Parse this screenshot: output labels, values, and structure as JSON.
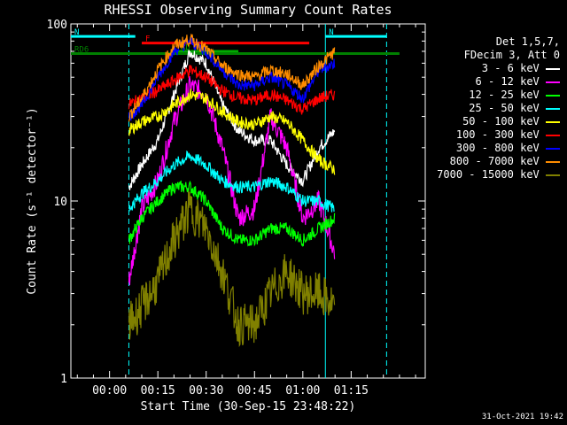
{
  "title": "RHESSI Observing Summary Count Rates",
  "xlabel": "Start Time (30-Sep-15 23:48:22)",
  "ylabel": "Count Rate (s⁻¹ detector⁻¹)",
  "timestamp": "31-Oct-2021 19:42",
  "legend_header": [
    "Det 1,5,7,",
    "FDecim 3, Att 0"
  ],
  "flag_labels": {
    "N": "N",
    "F": "F",
    "RD": "RD",
    "RD6": "RD6"
  },
  "chart_data": {
    "type": "line",
    "title": "RHESSI Observing Summary Count Rates",
    "xlabel": "Start Time (30-Sep-15 23:48:22)",
    "ylabel": "Count Rate (s^-1 detector^-1)",
    "y_scale": "log",
    "ylim": [
      1,
      100
    ],
    "y_ticks": [
      "1",
      "10",
      "100"
    ],
    "x_tick_labels": [
      "00:00",
      "00:15",
      "00:30",
      "00:45",
      "01:00",
      "01:15"
    ],
    "x_tick_minutes": [
      0,
      15,
      30,
      45,
      60,
      75
    ],
    "xlim_minutes": [
      -12,
      98
    ],
    "x": [
      6,
      10,
      15,
      20,
      25,
      30,
      35,
      40,
      45,
      50,
      55,
      60,
      65,
      70
    ],
    "series": [
      {
        "name": "3 - 6 keV",
        "color": "#ffffff",
        "values": [
          12,
          16,
          22,
          40,
          70,
          60,
          35,
          25,
          22,
          22,
          16,
          13,
          20,
          25
        ]
      },
      {
        "name": "6 - 12 keV",
        "color": "#ff00ff",
        "values": [
          3.5,
          9,
          13,
          28,
          45,
          40,
          20,
          8,
          9,
          30,
          20,
          8,
          10,
          5
        ]
      },
      {
        "name": "12 - 25 keV",
        "color": "#00ff00",
        "values": [
          6,
          8,
          10,
          12,
          12,
          10,
          7,
          6,
          6,
          7,
          7,
          6,
          7,
          8
        ]
      },
      {
        "name": "25 - 50 keV",
        "color": "#00ffff",
        "values": [
          9,
          11,
          13,
          16,
          18,
          16,
          13,
          12,
          12,
          13,
          12,
          10,
          10,
          9
        ]
      },
      {
        "name": "50 - 100 keV",
        "color": "#ffff00",
        "values": [
          25,
          28,
          30,
          35,
          40,
          38,
          32,
          28,
          27,
          30,
          28,
          22,
          17,
          15
        ]
      },
      {
        "name": "100 - 300 keV",
        "color": "#ff0000",
        "values": [
          35,
          38,
          42,
          48,
          55,
          50,
          42,
          38,
          37,
          40,
          37,
          33,
          38,
          40
        ]
      },
      {
        "name": "300 - 800 keV",
        "color": "#0000ff",
        "values": [
          30,
          35,
          50,
          70,
          80,
          70,
          55,
          45,
          45,
          50,
          45,
          38,
          55,
          60
        ]
      },
      {
        "name": "800 - 7000 keV",
        "color": "#ff8c00",
        "values": [
          30,
          38,
          55,
          75,
          82,
          72,
          58,
          52,
          50,
          55,
          52,
          45,
          58,
          70
        ]
      },
      {
        "name": "7000 - 15000 keV",
        "color": "#808000",
        "values": [
          2,
          2.5,
          3.5,
          6,
          9,
          7,
          4,
          2,
          2,
          3,
          4,
          3,
          3,
          2.5
        ]
      }
    ],
    "flags": [
      {
        "label": "N",
        "color": "#00ffff",
        "start": -12,
        "end": 8,
        "level": 85
      },
      {
        "label": "N",
        "color": "#00ffff",
        "start": 67,
        "end": 86,
        "level": 85
      },
      {
        "label": "F",
        "color": "#ff0000",
        "start": 10,
        "end": 62,
        "level": 78
      },
      {
        "label": "RD",
        "color": "#00aa00",
        "start": 21,
        "end": 40,
        "level": 70
      },
      {
        "label": "RD6",
        "color": "#008000",
        "start": -12,
        "end": 90,
        "level": 68
      }
    ],
    "vertical_markers": [
      {
        "color": "#00ffff",
        "minute": 6,
        "style": "dashed"
      },
      {
        "color": "#00ffff",
        "minute": 67,
        "style": "solid"
      },
      {
        "color": "#00ffff",
        "minute": 86,
        "style": "dashed"
      }
    ]
  }
}
